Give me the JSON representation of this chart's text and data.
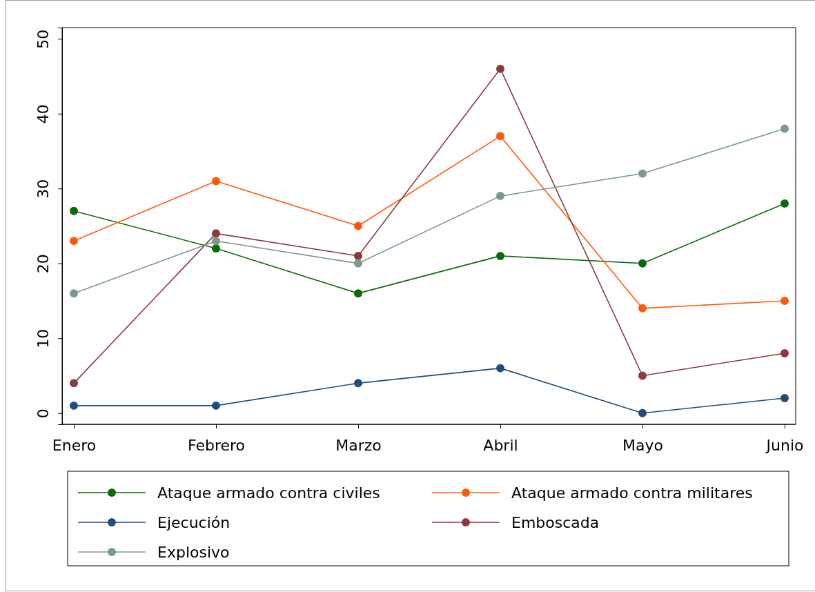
{
  "chart_data": {
    "type": "line",
    "categories": [
      "Enero",
      "Febrero",
      "Marzo",
      "Abril",
      "Mayo",
      "Junio"
    ],
    "series": [
      {
        "name": "Ataque armado contra civiles",
        "color": "#0b6b0b",
        "values": [
          27,
          22,
          16,
          21,
          20,
          28
        ]
      },
      {
        "name": "Ataque armado contra militares",
        "color": "#ff5a0a",
        "values": [
          23,
          31,
          25,
          37,
          14,
          15
        ]
      },
      {
        "name": "Ejecución",
        "color": "#1f4e79",
        "values": [
          1,
          1,
          4,
          6,
          0,
          2
        ]
      },
      {
        "name": "Emboscada",
        "color": "#8b3a3f",
        "values": [
          4,
          24,
          21,
          46,
          5,
          8
        ]
      },
      {
        "name": "Explosivo",
        "color": "#7a9a8c",
        "values": [
          16,
          23,
          20,
          29,
          32,
          38
        ]
      }
    ],
    "ylim": [
      -1.5,
      51.5
    ],
    "yticks": [
      0,
      10,
      20,
      30,
      40,
      50
    ],
    "grid": false,
    "legend": "bottom",
    "marker": "circle",
    "line_style": "solid"
  }
}
